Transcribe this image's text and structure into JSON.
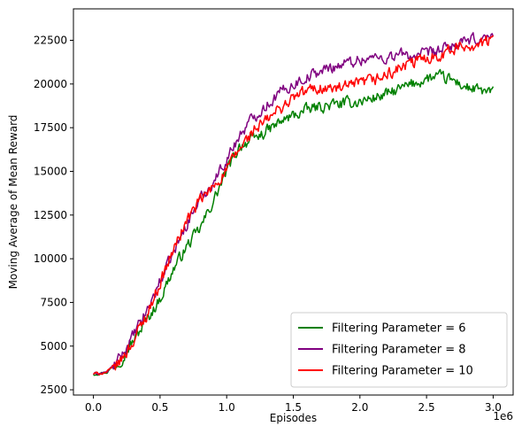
{
  "chart_data": {
    "type": "line",
    "title": "",
    "xlabel": "Episodes",
    "ylabel": "Moving Average of Mean Reward",
    "x_offset_label": "1e6",
    "xlim": [
      -0.15,
      3.15
    ],
    "ylim": [
      2200,
      24300
    ],
    "xticks": [
      0.0,
      0.5,
      1.0,
      1.5,
      2.0,
      2.5,
      3.0
    ],
    "xtick_labels": [
      "0.0",
      "0.5",
      "1.0",
      "1.5",
      "2.0",
      "2.5",
      "3.0"
    ],
    "yticks": [
      2500,
      5000,
      7500,
      10000,
      12500,
      15000,
      17500,
      20000,
      22500
    ],
    "ytick_labels": [
      "2500",
      "5000",
      "7500",
      "10000",
      "12500",
      "15000",
      "17500",
      "20000",
      "22500"
    ],
    "grid": false,
    "legend_position": "lower-right",
    "series": [
      {
        "name": "Filtering Parameter = 6",
        "color": "#008000",
        "anchors": [
          [
            0.0,
            3400
          ],
          [
            0.1,
            3500
          ],
          [
            0.2,
            4200
          ],
          [
            0.3,
            5300
          ],
          [
            0.4,
            6500
          ],
          [
            0.5,
            7700
          ],
          [
            0.6,
            9400
          ],
          [
            0.7,
            10700
          ],
          [
            0.8,
            11700
          ],
          [
            0.9,
            13300
          ],
          [
            1.0,
            15000
          ],
          [
            1.1,
            16500
          ],
          [
            1.2,
            16800
          ],
          [
            1.3,
            17300
          ],
          [
            1.4,
            17800
          ],
          [
            1.5,
            18200
          ],
          [
            1.6,
            18500
          ],
          [
            1.7,
            18700
          ],
          [
            1.8,
            18800
          ],
          [
            1.9,
            18900
          ],
          [
            2.0,
            19000
          ],
          [
            2.1,
            19200
          ],
          [
            2.2,
            19400
          ],
          [
            2.3,
            19700
          ],
          [
            2.4,
            20000
          ],
          [
            2.5,
            20300
          ],
          [
            2.6,
            20400
          ],
          [
            2.7,
            20200
          ],
          [
            2.8,
            19800
          ],
          [
            2.9,
            19600
          ],
          [
            3.0,
            19500
          ]
        ]
      },
      {
        "name": "Filtering Parameter = 8",
        "color": "#800080",
        "anchors": [
          [
            0.0,
            3400
          ],
          [
            0.1,
            3500
          ],
          [
            0.2,
            4300
          ],
          [
            0.3,
            5600
          ],
          [
            0.4,
            7000
          ],
          [
            0.5,
            8700
          ],
          [
            0.6,
            10300
          ],
          [
            0.7,
            12000
          ],
          [
            0.8,
            13400
          ],
          [
            0.9,
            14400
          ],
          [
            1.0,
            15700
          ],
          [
            1.1,
            17100
          ],
          [
            1.2,
            18100
          ],
          [
            1.3,
            18800
          ],
          [
            1.4,
            19500
          ],
          [
            1.5,
            20000
          ],
          [
            1.6,
            20400
          ],
          [
            1.7,
            20700
          ],
          [
            1.8,
            21000
          ],
          [
            1.9,
            21200
          ],
          [
            2.0,
            21400
          ],
          [
            2.1,
            21500
          ],
          [
            2.2,
            21500
          ],
          [
            2.3,
            21700
          ],
          [
            2.4,
            21600
          ],
          [
            2.5,
            21700
          ],
          [
            2.6,
            21900
          ],
          [
            2.7,
            22200
          ],
          [
            2.8,
            22400
          ],
          [
            2.9,
            22600
          ],
          [
            3.0,
            22700
          ]
        ]
      },
      {
        "name": "Filtering Parameter = 10",
        "color": "#ff0000",
        "anchors": [
          [
            0.0,
            3400
          ],
          [
            0.1,
            3500
          ],
          [
            0.2,
            4100
          ],
          [
            0.3,
            5300
          ],
          [
            0.4,
            6800
          ],
          [
            0.5,
            8600
          ],
          [
            0.6,
            10500
          ],
          [
            0.7,
            12200
          ],
          [
            0.8,
            13300
          ],
          [
            0.9,
            14100
          ],
          [
            1.0,
            15100
          ],
          [
            1.1,
            16300
          ],
          [
            1.2,
            17300
          ],
          [
            1.3,
            17900
          ],
          [
            1.4,
            18600
          ],
          [
            1.5,
            19200
          ],
          [
            1.6,
            19600
          ],
          [
            1.7,
            19800
          ],
          [
            1.8,
            19700
          ],
          [
            1.9,
            19800
          ],
          [
            2.0,
            20000
          ],
          [
            2.1,
            20200
          ],
          [
            2.2,
            20500
          ],
          [
            2.3,
            20900
          ],
          [
            2.4,
            21200
          ],
          [
            2.5,
            21500
          ],
          [
            2.6,
            21700
          ],
          [
            2.7,
            22000
          ],
          [
            2.8,
            22200
          ],
          [
            2.9,
            22300
          ],
          [
            3.0,
            22500
          ]
        ]
      }
    ]
  }
}
